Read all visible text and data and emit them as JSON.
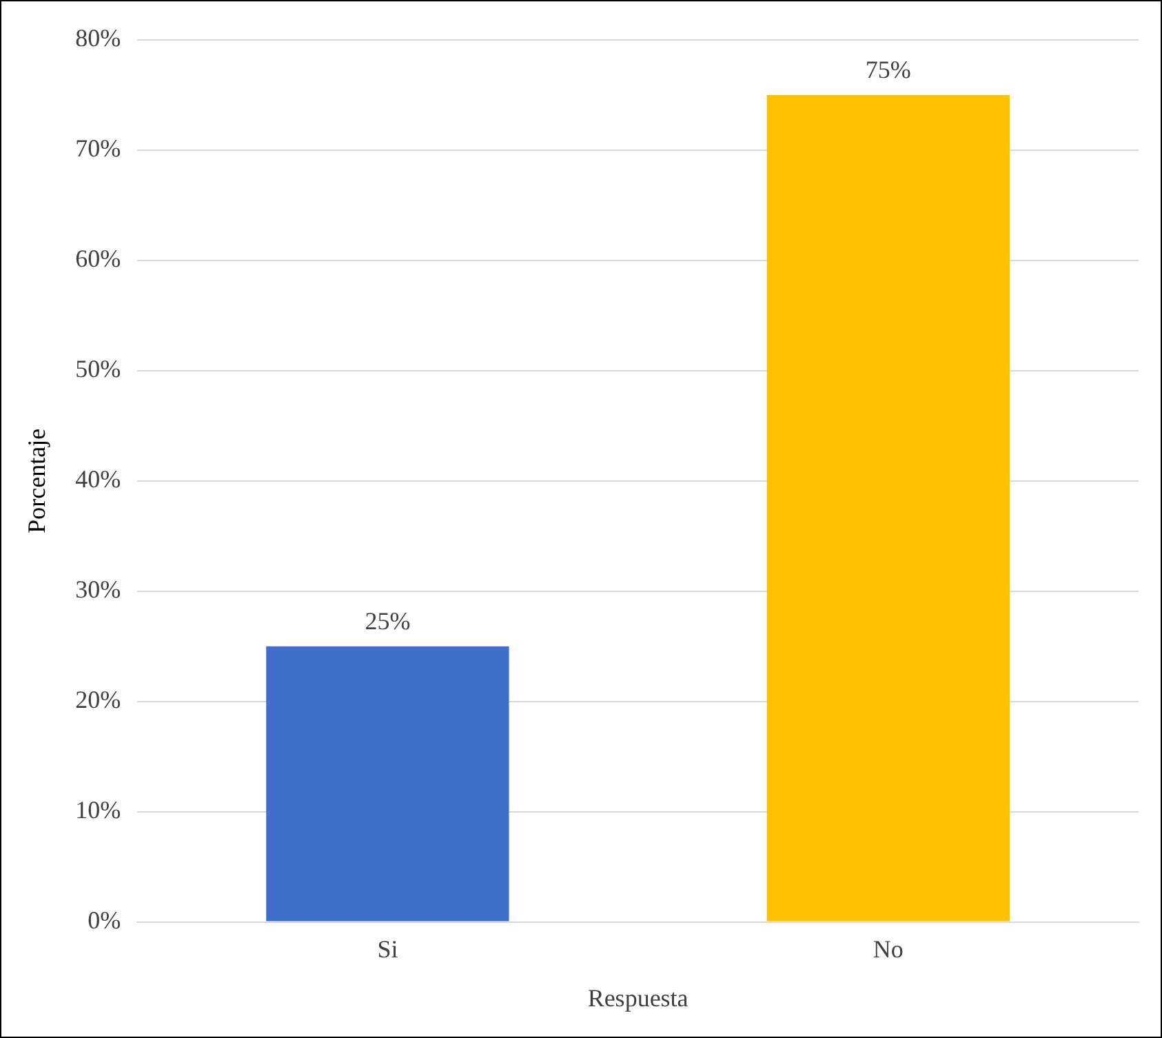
{
  "chart_data": {
    "type": "bar",
    "xlabel": "Respuesta",
    "ylabel": "Porcentaje",
    "categories": [
      "Si",
      "No"
    ],
    "values": [
      25,
      75
    ],
    "colors": [
      "#3f6fc9",
      "#ffc000"
    ],
    "value_labels": [
      "25%",
      "75%"
    ],
    "ylim": [
      0,
      80
    ],
    "yticks": [
      {
        "value": 0,
        "label": "0%"
      },
      {
        "value": 10,
        "label": "10%"
      },
      {
        "value": 20,
        "label": "20%"
      },
      {
        "value": 30,
        "label": "30%"
      },
      {
        "value": 40,
        "label": "40%"
      },
      {
        "value": 50,
        "label": "50%"
      },
      {
        "value": 60,
        "label": "60%"
      },
      {
        "value": 70,
        "label": "70%"
      },
      {
        "value": 80,
        "label": "80%"
      }
    ],
    "grid": "y",
    "legend": false
  }
}
